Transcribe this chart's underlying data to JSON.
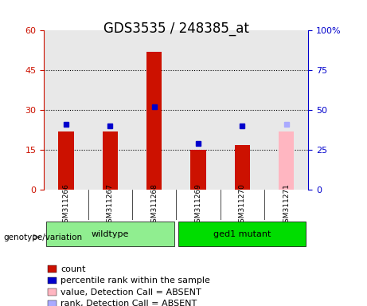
{
  "title": "GDS3535 / 248385_at",
  "samples": [
    "GSM311266",
    "GSM311267",
    "GSM311268",
    "GSM311269",
    "GSM311270",
    "GSM311271"
  ],
  "count_values": [
    22.0,
    22.0,
    52.0,
    15.0,
    17.0,
    22.0
  ],
  "rank_values": [
    41.0,
    40.0,
    52.0,
    29.0,
    40.0,
    41.0
  ],
  "absent_flags": [
    false,
    false,
    false,
    false,
    false,
    true
  ],
  "groups": [
    {
      "label": "wildtype",
      "samples": [
        "GSM311266",
        "GSM311267",
        "GSM311268"
      ],
      "color": "#90ee90"
    },
    {
      "label": "ged1 mutant",
      "samples": [
        "GSM311269",
        "GSM311270",
        "GSM311271"
      ],
      "color": "#00dd00"
    }
  ],
  "left_ylim": [
    0,
    60
  ],
  "right_ylim": [
    0,
    100
  ],
  "left_yticks": [
    0,
    15,
    30,
    45,
    60
  ],
  "right_yticks": [
    0,
    25,
    50,
    75,
    100
  ],
  "right_yticklabels": [
    "0",
    "25",
    "50",
    "75",
    "100%"
  ],
  "bar_color_present": "#cc1100",
  "bar_color_absent": "#ffb6c1",
  "marker_color_present": "#0000cc",
  "marker_color_absent": "#aaaaff",
  "bar_width": 0.35,
  "title_fontsize": 12,
  "axis_fontsize": 9,
  "tick_fontsize": 8,
  "legend_fontsize": 8,
  "bg_color_plot": "#e8e8e8",
  "bg_color_fig": "#ffffff",
  "left_axis_color": "#cc1100",
  "right_axis_color": "#0000cc",
  "group_label_prefix": "genotype/variation",
  "legend_items": [
    {
      "label": "count",
      "color": "#cc1100",
      "type": "square"
    },
    {
      "label": "percentile rank within the sample",
      "color": "#0000cc",
      "type": "square"
    },
    {
      "label": "value, Detection Call = ABSENT",
      "color": "#ffb6c1",
      "type": "square"
    },
    {
      "label": "rank, Detection Call = ABSENT",
      "color": "#aaaaff",
      "type": "square"
    }
  ]
}
